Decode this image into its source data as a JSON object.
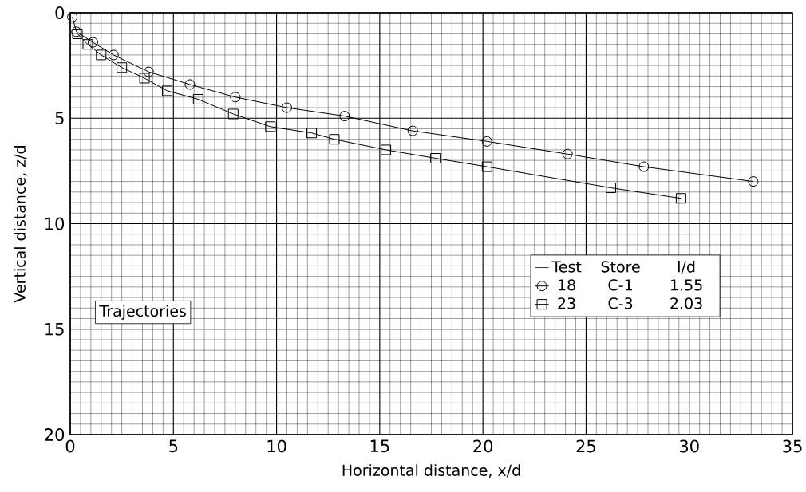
{
  "chart_data": {
    "type": "line",
    "xlabel": "Horizontal distance, x/d",
    "ylabel": "Vertical distance, z/d",
    "xlim": [
      0,
      35
    ],
    "ylim": [
      20,
      0
    ],
    "xticks": [
      0,
      5,
      10,
      15,
      20,
      25,
      30,
      35
    ],
    "yticks": [
      0,
      5,
      10,
      15,
      20
    ],
    "grid": true,
    "legend": "right",
    "line_style": "solid",
    "annotations": [
      "Test",
      "Store",
      "l/d",
      "C-1",
      "1.55",
      "C-3",
      "2.03",
      "Trajectories"
    ],
    "series": [
      {
        "name": "18",
        "color": "#000000",
        "marker": "circle",
        "x": [
          0.1,
          0.3,
          1.1,
          2.1,
          3.8,
          5.8,
          8.0,
          10.5,
          13.3,
          16.6,
          20.2,
          24.1,
          27.8,
          33.1
        ],
        "values": [
          0.2,
          0.9,
          1.4,
          2.0,
          2.8,
          3.4,
          4.0,
          4.5,
          4.9,
          5.6,
          6.1,
          6.7,
          7.3,
          8.0
        ]
      },
      {
        "name": "23",
        "color": "#000000",
        "marker": "square",
        "x": [
          0.35,
          0.85,
          1.5,
          2.5,
          3.6,
          4.7,
          6.2,
          7.9,
          9.7,
          11.7,
          12.8,
          15.3,
          17.7,
          20.2,
          26.2,
          29.6
        ],
        "values": [
          1.0,
          1.5,
          2.0,
          2.6,
          3.1,
          3.7,
          4.1,
          4.8,
          5.4,
          5.7,
          6.0,
          6.5,
          6.9,
          7.3,
          8.3,
          8.8
        ]
      }
    ]
  }
}
